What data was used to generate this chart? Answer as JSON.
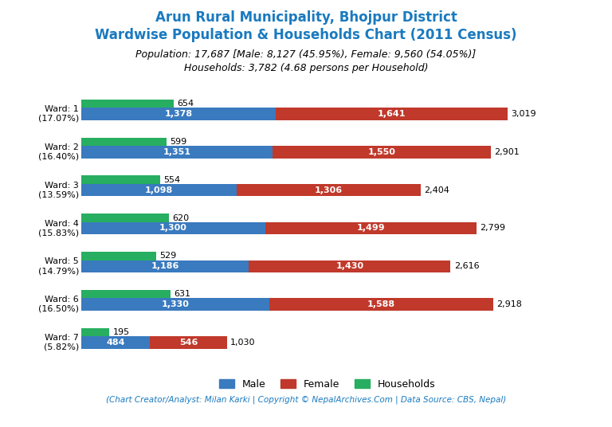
{
  "title_line1": "Arun Rural Municipality, Bhojpur District",
  "title_line2": "Wardwise Population & Households Chart (2011 Census)",
  "subtitle_line1": "Population: 17,687 [Male: 8,127 (45.95%), Female: 9,560 (54.05%)]",
  "subtitle_line2": "Households: 3,782 (4.68 persons per Household)",
  "footer": "(Chart Creator/Analyst: Milan Karki | Copyright © NepalArchives.Com | Data Source: CBS, Nepal)",
  "wards": [
    {
      "label": "Ward: 1\n(17.07%)",
      "male": 1378,
      "female": 1641,
      "households": 654,
      "total": 3019
    },
    {
      "label": "Ward: 2\n(16.40%)",
      "male": 1351,
      "female": 1550,
      "households": 599,
      "total": 2901
    },
    {
      "label": "Ward: 3\n(13.59%)",
      "male": 1098,
      "female": 1306,
      "households": 554,
      "total": 2404
    },
    {
      "label": "Ward: 4\n(15.83%)",
      "male": 1300,
      "female": 1499,
      "households": 620,
      "total": 2799
    },
    {
      "label": "Ward: 5\n(14.79%)",
      "male": 1186,
      "female": 1430,
      "households": 529,
      "total": 2616
    },
    {
      "label": "Ward: 6\n(16.50%)",
      "male": 1330,
      "female": 1588,
      "households": 631,
      "total": 2918
    },
    {
      "label": "Ward: 7\n(5.82%)",
      "male": 484,
      "female": 546,
      "households": 195,
      "total": 1030
    }
  ],
  "color_male": "#3a7abf",
  "color_female": "#c0392b",
  "color_households": "#27ae60",
  "title_color": "#1a7abf",
  "subtitle_color": "#000000",
  "footer_color": "#1a7abf",
  "bg_color": "#ffffff",
  "figsize": [
    7.68,
    5.36
  ],
  "dpi": 100
}
